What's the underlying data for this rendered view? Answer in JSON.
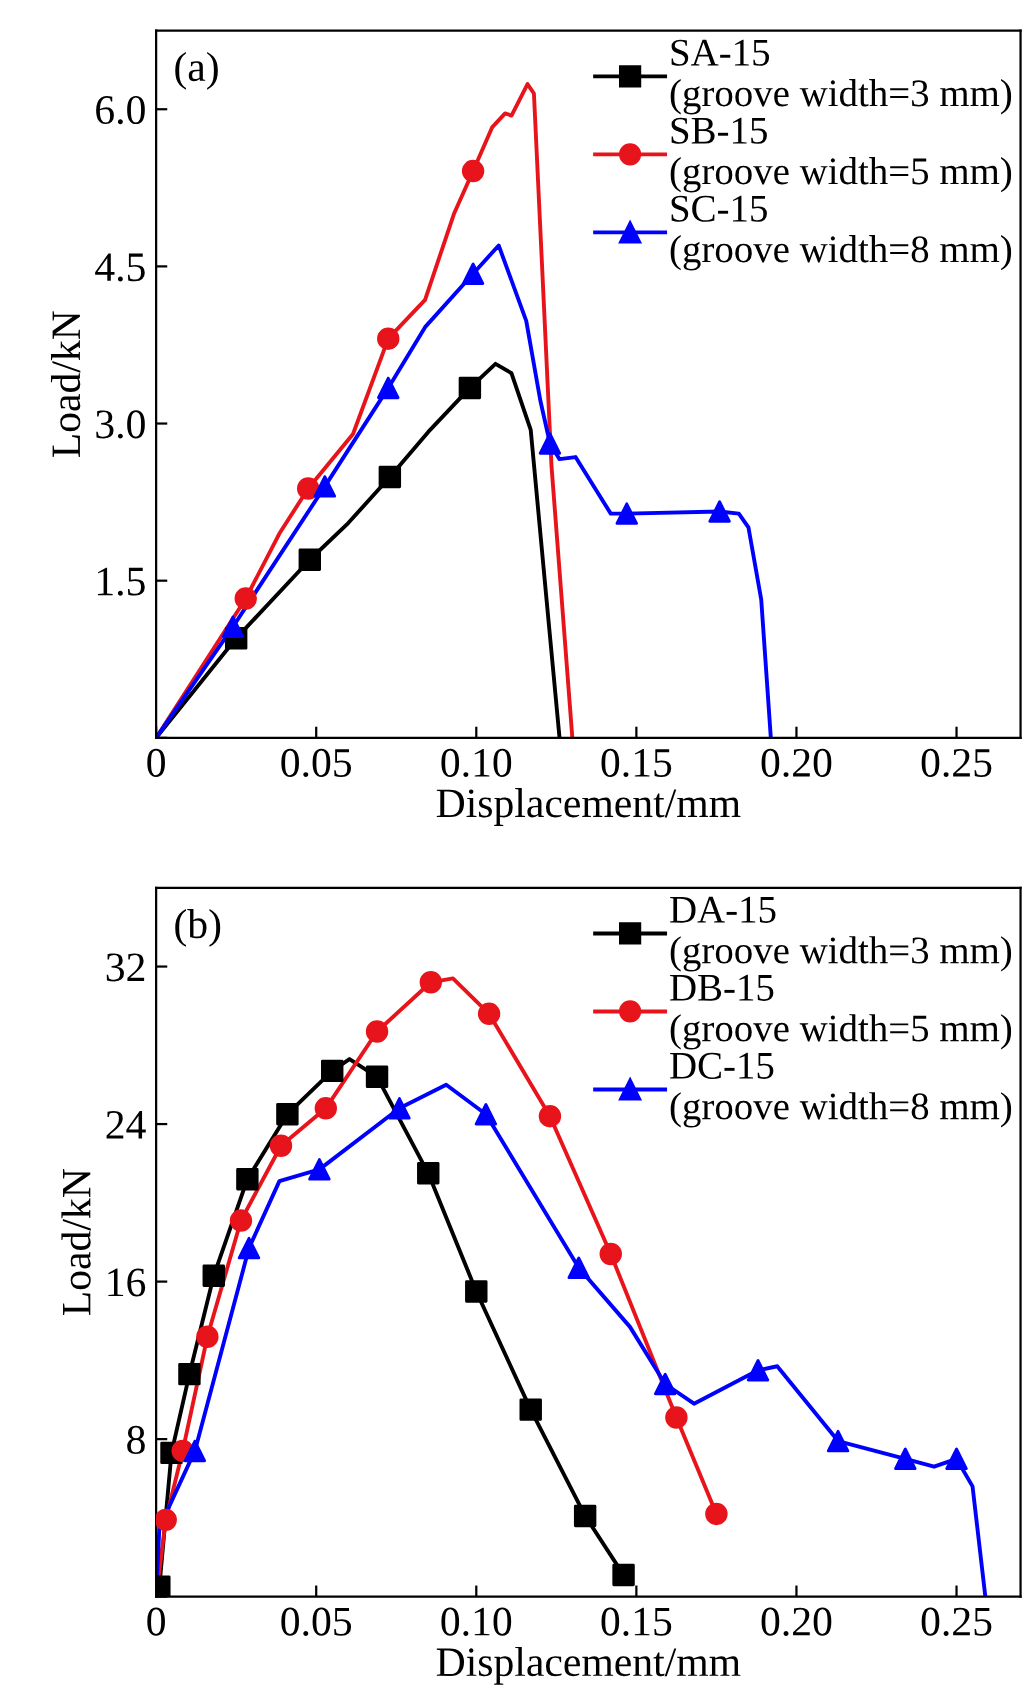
{
  "chart_data": [
    {
      "type": "line",
      "xlabel": "Displacement/mm",
      "ylabel": "Load/kN",
      "annotations": [
        "(a)"
      ],
      "xlim": [
        0,
        0.27
      ],
      "ylim": [
        0,
        6.75
      ],
      "xticks": [
        {
          "value": 0,
          "label": "0"
        },
        0.05,
        {
          "value": 0.1,
          "label": "0.10"
        },
        0.15,
        {
          "value": 0.2,
          "label": "0.20"
        },
        0.25
      ],
      "yticks": [
        {
          "value": 0,
          "label": null
        },
        1.5,
        {
          "value": 3,
          "label": "3.0"
        },
        4.5,
        {
          "value": 6,
          "label": "6.0"
        }
      ],
      "legend": "top right",
      "grid": false,
      "series": [
        {
          "name": "SA-15\n(groove width=3 mm)",
          "color": "#000000",
          "marker": "none",
          "x": [
            0,
            0.025,
            0.048,
            0.06,
            0.073,
            0.085,
            0.098,
            0.106,
            0.111,
            0.117,
            0.122,
            0.126
          ],
          "values": [
            0,
            0.95,
            1.7,
            2.05,
            2.49,
            2.92,
            3.34,
            3.57,
            3.48,
            2.94,
            1.3,
            0
          ]
        },
        {
          "type": "scatter",
          "color": "#000000",
          "marker": "square",
          "x": [
            0.025,
            0.048,
            0.073,
            0.098
          ],
          "values": [
            0.95,
            1.7,
            2.49,
            3.34
          ]
        },
        {
          "name": "SB-15\n(groove width=5 mm)",
          "color": "#e8141b",
          "marker": "none",
          "x": [
            0,
            0.028,
            0.0385,
            0.0475,
            0.0615,
            0.0725,
            0.084,
            0.093,
            0.099,
            0.105,
            0.109,
            0.111,
            0.116,
            0.118,
            0.1235,
            0.13
          ],
          "values": [
            0,
            1.33,
            1.95,
            2.38,
            2.9,
            3.81,
            4.18,
            5.0,
            5.41,
            5.83,
            5.96,
            5.94,
            6.24,
            6.15,
            2.59,
            0
          ]
        },
        {
          "type": "scatter",
          "color": "#e8141b",
          "marker": "circle",
          "x": [
            0.028,
            0.0475,
            0.0725,
            0.099
          ],
          "values": [
            1.33,
            2.38,
            3.81,
            5.41
          ]
        },
        {
          "name": "SC-15\n(groove width=8 mm)",
          "color": "#0000ff",
          "marker": "none",
          "x": [
            0,
            0.024,
            0.0527,
            0.0725,
            0.084,
            0.099,
            0.107,
            0.1156,
            0.12,
            0.123,
            0.126,
            0.131,
            0.142,
            0.147,
            0.176,
            0.182,
            0.185,
            0.189,
            0.192
          ],
          "values": [
            0,
            1.06,
            2.4,
            3.34,
            3.92,
            4.43,
            4.7,
            3.98,
            3.22,
            2.81,
            2.66,
            2.68,
            2.14,
            2.14,
            2.16,
            2.14,
            2.01,
            1.32,
            0
          ]
        },
        {
          "type": "scatter",
          "color": "#0000ff",
          "marker": "triangle",
          "x": [
            0.024,
            0.0527,
            0.0725,
            0.099,
            0.123,
            0.147,
            0.176
          ],
          "values": [
            1.06,
            2.4,
            3.34,
            4.43,
            2.81,
            2.14,
            2.16
          ]
        }
      ]
    },
    {
      "type": "line",
      "xlabel": "Displacement/mm",
      "ylabel": "Load/kN",
      "annotations": [
        "(b)"
      ],
      "xlim": [
        0,
        0.27
      ],
      "ylim": [
        0,
        36
      ],
      "xticks": [
        {
          "value": 0,
          "label": "0"
        },
        0.05,
        {
          "value": 0.1,
          "label": "0.10"
        },
        0.15,
        {
          "value": 0.2,
          "label": "0.20"
        },
        0.25
      ],
      "yticks": [
        {
          "value": 0,
          "label": null
        },
        8,
        16,
        24,
        32
      ],
      "legend": "top right",
      "grid": false,
      "series": [
        {
          "name": "DA-15\n(groove width=3 mm)",
          "color": "#000000",
          "marker": "none",
          "x": [
            0,
            0.001,
            0.0048,
            0.0104,
            0.018,
            0.0285,
            0.041,
            0.055,
            0.0604,
            0.069,
            0.085,
            0.1,
            0.117,
            0.134,
            0.146
          ],
          "values": [
            0,
            0.5,
            7.3,
            11.3,
            16.3,
            21.2,
            24.5,
            26.7,
            27.3,
            26.4,
            21.5,
            15.5,
            9.5,
            4.1,
            1.1
          ]
        },
        {
          "type": "scatter",
          "color": "#000000",
          "marker": "square",
          "x": [
            0.001,
            0.0048,
            0.0104,
            0.018,
            0.0285,
            0.041,
            0.055,
            0.069,
            0.085,
            0.1,
            0.117,
            0.134,
            0.146
          ],
          "values": [
            0.5,
            7.3,
            11.3,
            16.3,
            21.2,
            24.5,
            26.7,
            26.4,
            21.5,
            15.5,
            9.5,
            4.1,
            1.1
          ]
        },
        {
          "name": "DB-15\n(groove width=5 mm)",
          "color": "#e8141b",
          "marker": "none",
          "x": [
            0,
            0.003,
            0.0083,
            0.016,
            0.0265,
            0.039,
            0.053,
            0.069,
            0.0858,
            0.0927,
            0.104,
            0.123,
            0.142,
            0.1625,
            0.175
          ],
          "values": [
            0,
            3.9,
            7.4,
            13.2,
            19.1,
            22.9,
            24.8,
            28.7,
            31.2,
            31.4,
            29.6,
            24.4,
            17.4,
            9.1,
            4.2
          ]
        },
        {
          "type": "scatter",
          "color": "#e8141b",
          "marker": "circle",
          "x": [
            0.003,
            0.0083,
            0.016,
            0.0265,
            0.039,
            0.053,
            0.069,
            0.0858,
            0.104,
            0.123,
            0.142,
            0.1625,
            0.175
          ],
          "values": [
            3.9,
            7.4,
            13.2,
            19.1,
            22.9,
            24.8,
            28.7,
            31.2,
            29.6,
            24.4,
            17.4,
            9.1,
            4.2
          ]
        },
        {
          "name": "DC-15\n(groove width=8 mm)",
          "color": "#0000ff",
          "marker": "none",
          "x": [
            0,
            0.001,
            0.0121,
            0.029,
            0.0385,
            0.051,
            0.076,
            0.0906,
            0.103,
            0.132,
            0.148,
            0.159,
            0.168,
            0.188,
            0.194,
            0.213,
            0.234,
            0.243,
            0.25,
            0.255,
            0.259
          ],
          "values": [
            0,
            3.5,
            7.4,
            17.7,
            21.1,
            21.7,
            24.8,
            26.0,
            24.5,
            16.7,
            13.7,
            10.8,
            9.8,
            11.5,
            11.7,
            7.9,
            7.0,
            6.6,
            7.0,
            5.6,
            0
          ]
        },
        {
          "type": "scatter",
          "color": "#0000ff",
          "marker": "triangle",
          "x": [
            0.0121,
            0.029,
            0.051,
            0.076,
            0.103,
            0.132,
            0.159,
            0.188,
            0.213,
            0.234,
            0.25
          ],
          "values": [
            7.4,
            17.7,
            21.7,
            24.8,
            24.5,
            16.7,
            10.8,
            11.5,
            7.9,
            7.0,
            7.0
          ]
        }
      ]
    }
  ]
}
